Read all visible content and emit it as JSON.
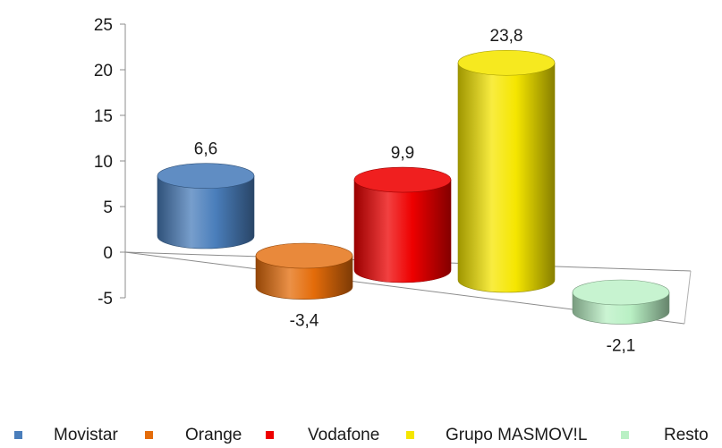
{
  "chart_data": {
    "type": "bar",
    "categories": [
      "Movistar",
      "Orange",
      "Vodafone",
      "Grupo MASMOV!L",
      "Resto"
    ],
    "values": [
      6.6,
      -3.4,
      9.9,
      23.8,
      -2.1
    ],
    "data_labels": [
      "6,6",
      "-3,4",
      "9,9",
      "23,8",
      "-2,1"
    ],
    "colors": [
      "#4a7ebb",
      "#e46c0a",
      "#ee0000",
      "#f5e600",
      "#b9f0c4"
    ],
    "ylim": [
      -5,
      25
    ],
    "yticks": [
      -5,
      0,
      5,
      10,
      15,
      20,
      25
    ],
    "ytick_labels": [
      "-5",
      "0",
      "5",
      "10",
      "15",
      "20",
      "25"
    ],
    "style": "3d-cylinder",
    "grid": false,
    "legend_position": "bottom"
  }
}
